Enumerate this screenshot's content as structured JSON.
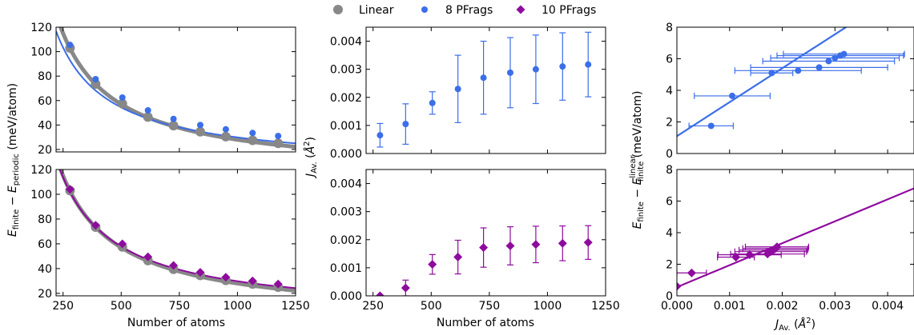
{
  "colors": {
    "linear": "#888888",
    "pfrags8": "#3b6ee8",
    "pfrags10": "#8e0b9e"
  },
  "legend": [
    {
      "label": "Linear",
      "marker": "circle",
      "color": "#888888"
    },
    {
      "label": "8 PFrags",
      "marker": "circle",
      "color": "#3b6ee8"
    },
    {
      "label": "10 PFrags",
      "marker": "diamond",
      "color": "#8e0b9e"
    }
  ],
  "labels": {
    "left_xlabel": "Number of atoms",
    "left_ylabel": "E_finite − E_periodic (meV/atom)",
    "mid_xlabel": "Number of atoms",
    "mid_ylabel": "J_Av. (Å²)",
    "right_xlabel": "J_Av. (Å²)",
    "right_ylabel": "E_finite − E_finite^linear (meV/atom)"
  },
  "chart_data": [
    {
      "id": "top-left",
      "type": "scatter",
      "xlim": [
        220,
        1250
      ],
      "ylim": [
        18,
        120
      ],
      "xticks": [
        "250",
        "500",
        "750",
        "1000",
        "1250"
      ],
      "yticks": [
        "20",
        "40",
        "60",
        "80",
        "100",
        "120"
      ],
      "show_xticklabels": false,
      "series": [
        {
          "name": "Linear",
          "color": "#888888",
          "marker": "circle",
          "x": [
            280,
            390,
            505,
            615,
            725,
            840,
            950,
            1065,
            1175
          ],
          "y": [
            103,
            73.5,
            57.5,
            46.5,
            39.5,
            34.5,
            30.5,
            27.5,
            25
          ]
        },
        {
          "name": "8 PFrags",
          "color": "#3b6ee8",
          "marker": "circle",
          "x": [
            280,
            390,
            505,
            615,
            725,
            840,
            950,
            1065,
            1175
          ],
          "y": [
            105.5,
            77.5,
            62.5,
            52,
            45,
            40,
            36.5,
            33.5,
            31
          ]
        }
      ],
      "fits": [
        {
          "color": "#888888",
          "a": 29000,
          "b": -1,
          "width": 5
        },
        {
          "color": "#3b6ee8",
          "a": 24500,
          "b": 5.4,
          "width": 2
        }
      ]
    },
    {
      "id": "bottom-left",
      "type": "scatter",
      "xlim": [
        220,
        1250
      ],
      "ylim": [
        18,
        120
      ],
      "xticks": [
        "250",
        "500",
        "750",
        "1000",
        "1250"
      ],
      "yticks": [
        "20",
        "40",
        "60",
        "80",
        "100",
        "120"
      ],
      "show_xticklabels": true,
      "series": [
        {
          "name": "Linear",
          "color": "#888888",
          "marker": "circle",
          "x": [
            280,
            390,
            505,
            615,
            725,
            840,
            950,
            1065,
            1175
          ],
          "y": [
            103,
            73.5,
            57.5,
            46.5,
            39.5,
            34.5,
            30.5,
            27.5,
            25
          ]
        },
        {
          "name": "10 PFrags",
          "color": "#8e0b9e",
          "marker": "diamond",
          "x": [
            280,
            390,
            505,
            615,
            725,
            840,
            950,
            1065,
            1175
          ],
          "y": [
            104,
            75,
            60,
            49.5,
            42.5,
            37,
            33,
            30,
            27.5
          ]
        }
      ],
      "fits": [
        {
          "color": "#888888",
          "a": 29000,
          "b": -1,
          "width": 5
        },
        {
          "color": "#8e0b9e",
          "a": 28000,
          "b": 1.8,
          "width": 2
        }
      ]
    },
    {
      "id": "top-mid",
      "type": "scatter",
      "xlim": [
        220,
        1250
      ],
      "ylim": [
        0,
        0.0045
      ],
      "xticks": [
        "250",
        "500",
        "750",
        "1000",
        "1250"
      ],
      "yticks": [
        "0.000",
        "0.001",
        "0.002",
        "0.003",
        "0.004"
      ],
      "show_xticklabels": false,
      "series": [
        {
          "name": "8 PFrags",
          "color": "#3b6ee8",
          "marker": "circle",
          "x": [
            280,
            390,
            505,
            615,
            725,
            840,
            950,
            1065,
            1175
          ],
          "y": [
            0.00065,
            0.00105,
            0.0018,
            0.0023,
            0.0027,
            0.00288,
            0.003,
            0.0031,
            0.00317
          ],
          "yerr": [
            0.00042,
            0.00072,
            0.0004,
            0.0012,
            0.0013,
            0.00125,
            0.00122,
            0.0012,
            0.00115
          ]
        }
      ]
    },
    {
      "id": "bottom-mid",
      "type": "scatter",
      "xlim": [
        220,
        1250
      ],
      "ylim": [
        0,
        0.0045
      ],
      "xticks": [
        "250",
        "500",
        "750",
        "1000",
        "1250"
      ],
      "yticks": [
        "0.000",
        "0.001",
        "0.002",
        "0.003",
        "0.004"
      ],
      "show_xticklabels": true,
      "series": [
        {
          "name": "10 PFrags",
          "color": "#8e0b9e",
          "marker": "diamond",
          "x": [
            280,
            390,
            505,
            615,
            725,
            840,
            950,
            1065,
            1175
          ],
          "y": [
            0,
            0.00028,
            0.00112,
            0.00138,
            0.00172,
            0.00178,
            0.00183,
            0.00187,
            0.0019
          ],
          "yerr": [
            0,
            0.00028,
            0.00035,
            0.0006,
            0.0007,
            0.00068,
            0.00065,
            0.00062,
            0.0006
          ]
        }
      ]
    },
    {
      "id": "top-right",
      "type": "scatter",
      "xlim": [
        0,
        0.0045
      ],
      "ylim": [
        0,
        8
      ],
      "xticks": [
        "0.000",
        "0.001",
        "0.002",
        "0.003",
        "0.004"
      ],
      "yticks": [
        "0",
        "2",
        "4",
        "6",
        "8"
      ],
      "show_xticklabels": false,
      "series": [
        {
          "name": "8 PFrags",
          "color": "#3b6ee8",
          "marker": "circle",
          "x": [
            0.00065,
            0.00105,
            0.0018,
            0.0023,
            0.0027,
            0.00288,
            0.003,
            0.0031,
            0.00317
          ],
          "y": [
            1.75,
            3.65,
            5.1,
            5.25,
            5.45,
            5.85,
            6.05,
            6.2,
            6.3
          ],
          "xerr": [
            0.00042,
            0.00072,
            0.0004,
            0.0012,
            0.0013,
            0.00125,
            0.00122,
            0.0012,
            0.00115
          ]
        }
      ],
      "line": {
        "color": "#3b6ee8",
        "intercept": 1.1,
        "slope": 2150
      }
    },
    {
      "id": "bottom-right",
      "type": "scatter",
      "xlim": [
        0,
        0.0045
      ],
      "ylim": [
        0,
        8
      ],
      "xticks": [
        "0.000",
        "0.001",
        "0.002",
        "0.003",
        "0.004"
      ],
      "yticks": [
        "0",
        "2",
        "4",
        "6",
        "8"
      ],
      "show_xticklabels": true,
      "series": [
        {
          "name": "10 PFrags",
          "color": "#8e0b9e",
          "marker": "diamond",
          "x": [
            0,
            0.00028,
            0.00112,
            0.00138,
            0.00172,
            0.00178,
            0.00183,
            0.00187,
            0.0019
          ],
          "y": [
            0.6,
            1.45,
            2.45,
            2.6,
            2.65,
            2.8,
            2.9,
            3.0,
            3.1
          ],
          "xerr": [
            0,
            0.00028,
            0.00035,
            0.0006,
            0.0007,
            0.00068,
            0.00065,
            0.00062,
            0.0006
          ]
        }
      ],
      "line": {
        "color": "#8e0b9e",
        "intercept": 0.55,
        "slope": 1390
      }
    }
  ]
}
